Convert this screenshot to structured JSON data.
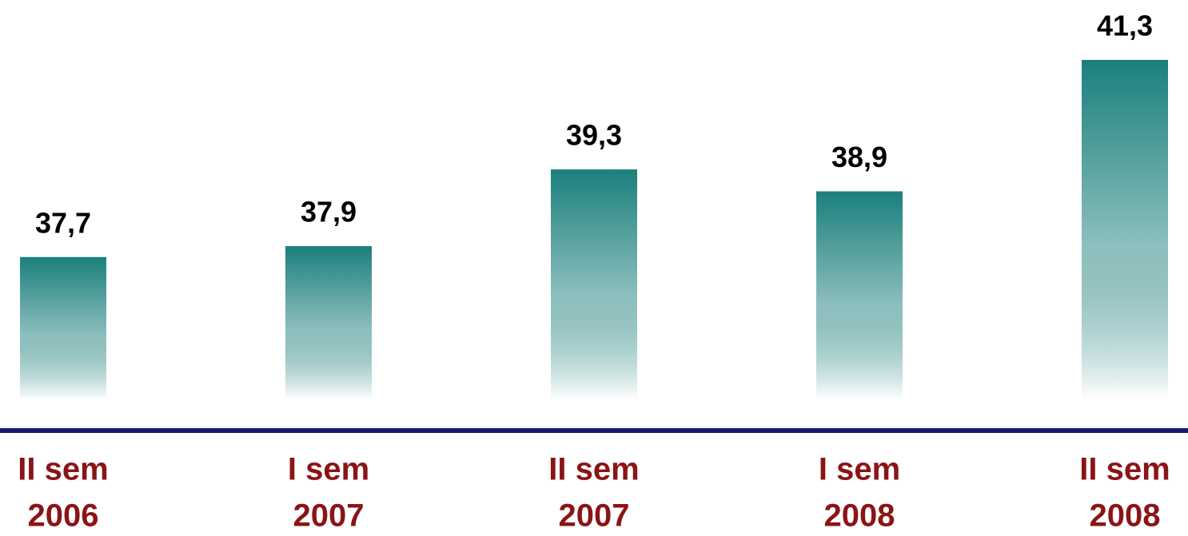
{
  "chart_data": {
    "type": "bar",
    "categories": [
      [
        "II sem",
        "2006"
      ],
      [
        "I sem",
        "2007"
      ],
      [
        "II sem",
        "2007"
      ],
      [
        "I sem",
        "2008"
      ],
      [
        "II sem",
        "2008"
      ]
    ],
    "values": [
      37.7,
      37.9,
      39.3,
      38.9,
      41.3
    ],
    "value_labels": [
      "37,7",
      "37,9",
      "39,3",
      "38,9",
      "41,3"
    ],
    "color": "#1b7f7c",
    "ylim": [
      35.1,
      41.3
    ]
  }
}
